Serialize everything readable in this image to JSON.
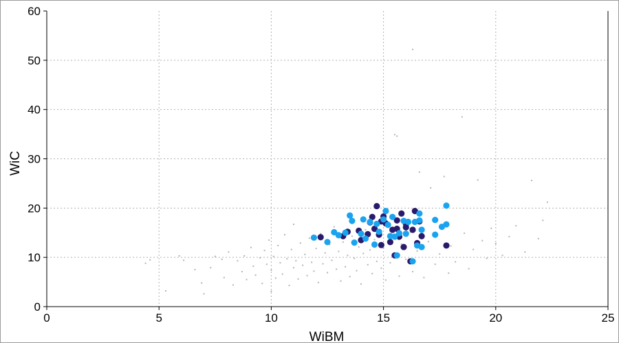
{
  "chart_data": {
    "type": "scatter",
    "xlabel": "WiBM",
    "ylabel": "WiC",
    "xlim": [
      0,
      25
    ],
    "ylim": [
      0,
      60
    ],
    "xticks": [
      0,
      5,
      10,
      15,
      20,
      25
    ],
    "yticks": [
      0,
      10,
      20,
      30,
      40,
      50,
      60
    ],
    "grid": true,
    "colors": {
      "background_points": "#b4b4b4",
      "series_dark": "#2a1a6b",
      "series_light": "#1aa3ee"
    },
    "series": [
      {
        "style": "background",
        "values": [
          [
            4.4,
            8.8
          ],
          [
            4.6,
            9.5
          ],
          [
            5.3,
            3.2
          ],
          [
            5.9,
            10.3
          ],
          [
            6.1,
            9.4
          ],
          [
            6.6,
            7.5
          ],
          [
            6.9,
            4.8
          ],
          [
            7.0,
            2.6
          ],
          [
            7.3,
            7.9
          ],
          [
            7.5,
            10.2
          ],
          [
            7.8,
            9.6
          ],
          [
            7.9,
            5.9
          ],
          [
            8.1,
            11.1
          ],
          [
            8.3,
            4.4
          ],
          [
            8.5,
            9.3
          ],
          [
            8.7,
            7.1
          ],
          [
            8.8,
            10.3
          ],
          [
            8.9,
            5.5
          ],
          [
            9.1,
            12.0
          ],
          [
            9.2,
            8.2
          ],
          [
            9.3,
            6.4
          ],
          [
            9.5,
            9.9
          ],
          [
            9.6,
            4.7
          ],
          [
            9.7,
            11.4
          ],
          [
            9.8,
            8.6
          ],
          [
            9.9,
            13.5
          ],
          [
            10.0,
            7.4
          ],
          [
            10.0,
            3.1
          ],
          [
            10.1,
            10.2
          ],
          [
            10.2,
            5.8
          ],
          [
            10.3,
            12.4
          ],
          [
            10.4,
            8.9
          ],
          [
            10.5,
            6.6
          ],
          [
            10.6,
            14.6
          ],
          [
            10.7,
            9.7
          ],
          [
            10.8,
            4.3
          ],
          [
            10.9,
            11.6
          ],
          [
            11.0,
            7.9
          ],
          [
            11.0,
            16.7
          ],
          [
            11.1,
            9.3
          ],
          [
            11.2,
            5.6
          ],
          [
            11.3,
            12.9
          ],
          [
            11.4,
            8.4
          ],
          [
            11.5,
            10.6
          ],
          [
            11.6,
            6.3
          ],
          [
            11.7,
            13.9
          ],
          [
            11.8,
            9.0
          ],
          [
            11.9,
            7.2
          ],
          [
            12.0,
            11.8
          ],
          [
            12.1,
            4.9
          ],
          [
            12.2,
            14.8
          ],
          [
            12.3,
            8.7
          ],
          [
            12.4,
            10.9
          ],
          [
            12.5,
            6.9
          ],
          [
            12.6,
            12.6
          ],
          [
            12.7,
            9.4
          ],
          [
            12.8,
            16.2
          ],
          [
            12.9,
            7.6
          ],
          [
            13.0,
            11.2
          ],
          [
            13.1,
            5.2
          ],
          [
            13.2,
            13.1
          ],
          [
            13.3,
            8.1
          ],
          [
            13.4,
            10.4
          ],
          [
            13.5,
            6.1
          ],
          [
            13.6,
            14.3
          ],
          [
            13.7,
            9.8
          ],
          [
            13.8,
            7.3
          ],
          [
            13.9,
            12.1
          ],
          [
            14.0,
            4.6
          ],
          [
            14.1,
            10.8
          ],
          [
            14.2,
            15.6
          ],
          [
            14.3,
            8.5
          ],
          [
            14.4,
            11.5
          ],
          [
            14.5,
            6.7
          ],
          [
            14.6,
            13.6
          ],
          [
            14.7,
            9.2
          ],
          [
            14.8,
            16.9
          ],
          [
            14.9,
            7.8
          ],
          [
            15.0,
            11.9
          ],
          [
            15.1,
            5.4
          ],
          [
            15.2,
            14.1
          ],
          [
            15.3,
            8.9
          ],
          [
            15.4,
            10.1
          ],
          [
            15.5,
            34.9
          ],
          [
            15.6,
            34.6
          ],
          [
            15.7,
            6.2
          ],
          [
            15.8,
            12.7
          ],
          [
            16.0,
            9.6
          ],
          [
            16.2,
            15.1
          ],
          [
            16.3,
            7.1
          ],
          [
            16.5,
            11.3
          ],
          [
            16.6,
            27.3
          ],
          [
            16.8,
            5.9
          ],
          [
            17.0,
            13.2
          ],
          [
            17.1,
            24.1
          ],
          [
            17.3,
            8.6
          ],
          [
            17.5,
            10.7
          ],
          [
            17.7,
            26.4
          ],
          [
            17.9,
            6.8
          ],
          [
            18.0,
            12.3
          ],
          [
            18.2,
            9.1
          ],
          [
            18.5,
            38.5
          ],
          [
            18.6,
            14.9
          ],
          [
            18.8,
            7.7
          ],
          [
            19.0,
            11.6
          ],
          [
            19.2,
            25.7
          ],
          [
            19.4,
            13.4
          ],
          [
            19.6,
            9.8
          ],
          [
            19.8,
            15.9
          ],
          [
            20.0,
            12.8
          ],
          [
            20.3,
            10.4
          ],
          [
            20.6,
            14.2
          ],
          [
            20.9,
            16.4
          ],
          [
            21.3,
            11.1
          ],
          [
            21.6,
            25.6
          ],
          [
            21.9,
            13.8
          ],
          [
            22.1,
            17.5
          ],
          [
            22.3,
            21.2
          ],
          [
            16.3,
            52.2
          ]
        ]
      },
      {
        "style": "dark",
        "values": [
          [
            12.2,
            14.1
          ],
          [
            13.2,
            14.3
          ],
          [
            13.4,
            15.2
          ],
          [
            13.9,
            15.4
          ],
          [
            14.0,
            13.5
          ],
          [
            14.3,
            14.7
          ],
          [
            14.4,
            17.1
          ],
          [
            14.5,
            18.2
          ],
          [
            14.6,
            15.8
          ],
          [
            14.7,
            20.4
          ],
          [
            14.8,
            14.6
          ],
          [
            14.9,
            17.3
          ],
          [
            15.0,
            18.3
          ],
          [
            15.1,
            16.9
          ],
          [
            15.3,
            13.1
          ],
          [
            15.4,
            15.6
          ],
          [
            15.5,
            10.4
          ],
          [
            15.6,
            17.5
          ],
          [
            15.7,
            14.2
          ],
          [
            15.8,
            18.9
          ],
          [
            15.9,
            12.1
          ],
          [
            16.0,
            16.1
          ],
          [
            16.2,
            9.2
          ],
          [
            16.3,
            15.6
          ],
          [
            16.4,
            19.4
          ],
          [
            16.5,
            12.9
          ],
          [
            16.6,
            17.3
          ],
          [
            16.7,
            14.3
          ],
          [
            17.8,
            12.4
          ],
          [
            16.0,
            16.8
          ],
          [
            14.9,
            12.5
          ],
          [
            15.6,
            15.8
          ]
        ]
      },
      {
        "style": "light",
        "values": [
          [
            11.9,
            14.0
          ],
          [
            12.5,
            13.1
          ],
          [
            12.8,
            15.1
          ],
          [
            13.0,
            14.5
          ],
          [
            13.3,
            15.0
          ],
          [
            13.5,
            18.5
          ],
          [
            13.6,
            17.4
          ],
          [
            13.7,
            13.0
          ],
          [
            14.0,
            14.8
          ],
          [
            14.1,
            17.7
          ],
          [
            14.2,
            13.8
          ],
          [
            14.4,
            17.2
          ],
          [
            14.6,
            12.6
          ],
          [
            14.7,
            16.8
          ],
          [
            14.8,
            15.2
          ],
          [
            15.0,
            17.7
          ],
          [
            15.1,
            19.4
          ],
          [
            15.2,
            16.6
          ],
          [
            15.3,
            14.3
          ],
          [
            15.4,
            18.2
          ],
          [
            15.5,
            14.2
          ],
          [
            15.6,
            10.4
          ],
          [
            15.7,
            14.9
          ],
          [
            15.9,
            17.4
          ],
          [
            16.0,
            14.8
          ],
          [
            16.1,
            17.2
          ],
          [
            16.3,
            9.2
          ],
          [
            16.4,
            17.2
          ],
          [
            16.5,
            12.4
          ],
          [
            16.6,
            18.9
          ],
          [
            16.7,
            15.6
          ],
          [
            16.7,
            12.1
          ],
          [
            16.6,
            17.5
          ],
          [
            17.3,
            17.6
          ],
          [
            17.3,
            14.6
          ],
          [
            17.6,
            16.2
          ],
          [
            17.8,
            20.5
          ],
          [
            17.8,
            16.7
          ]
        ]
      }
    ]
  }
}
